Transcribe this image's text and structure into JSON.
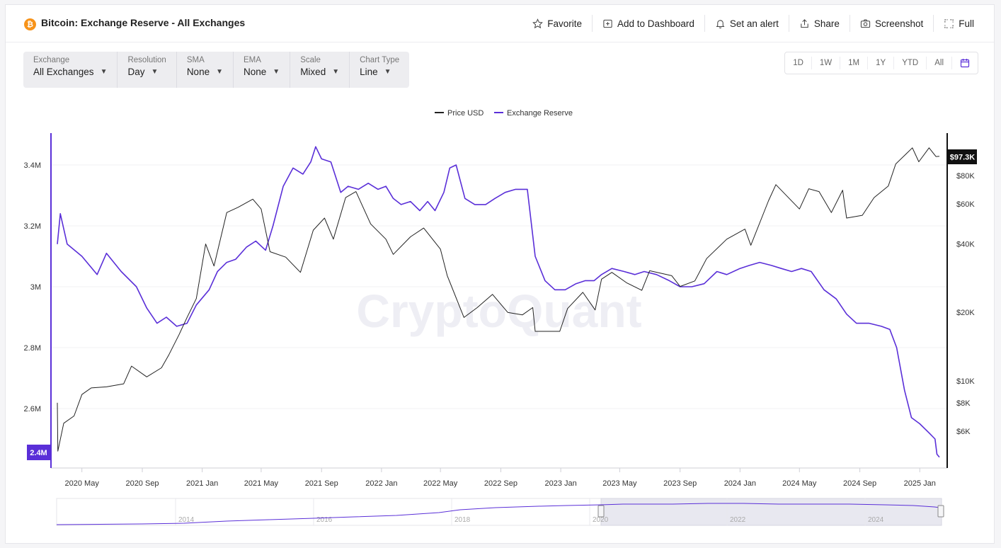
{
  "header": {
    "title": "Bitcoin: Exchange Reserve - All Exchanges",
    "actions": [
      "Favorite",
      "Add to Dashboard",
      "Set an alert",
      "Share",
      "Screenshot",
      "Full"
    ]
  },
  "controls": [
    {
      "label": "Exchange",
      "value": "All Exchanges"
    },
    {
      "label": "Resolution",
      "value": "Day"
    },
    {
      "label": "SMA",
      "value": "None"
    },
    {
      "label": "EMA",
      "value": "None"
    },
    {
      "label": "Scale",
      "value": "Mixed"
    },
    {
      "label": "Chart Type",
      "value": "Line"
    }
  ],
  "ranges": [
    "1D",
    "1W",
    "1M",
    "1Y",
    "YTD",
    "All"
  ],
  "colors": {
    "price": "#222222",
    "reserve": "#5a2fd8",
    "accent": "#5a2fd8"
  },
  "watermark": "CryptoQuant",
  "chart_data": {
    "type": "line",
    "legend": [
      "Price USD",
      "Exchange Reserve"
    ],
    "legend_position": "top-center",
    "x_ticks": [
      "2020 May",
      "2020 Sep",
      "2021 Jan",
      "2021 May",
      "2021 Sep",
      "2022 Jan",
      "2022 May",
      "2022 Sep",
      "2023 Jan",
      "2023 May",
      "2023 Sep",
      "2024 Jan",
      "2024 May",
      "2024 Sep",
      "2025 Jan"
    ],
    "x_range": [
      "2020-03-12",
      "2025-02-10"
    ],
    "left_axis": {
      "ticks": [
        "3.4M",
        "3.2M",
        "3M",
        "2.8M",
        "2.6M"
      ],
      "range": [
        2380000,
        3480000
      ],
      "current": "2.4M",
      "scale": "linear"
    },
    "right_axis": {
      "ticks": [
        "$80K",
        "$60K",
        "$40K",
        "$20K",
        "$10K",
        "$8K",
        "$6K"
      ],
      "range": [
        4200,
        125000
      ],
      "current": "$97.3K",
      "scale": "log"
    },
    "series": [
      {
        "name": "Exchange Reserve",
        "axis": "left",
        "points": [
          [
            "2020-03-12",
            3140000
          ],
          [
            "2020-03-18",
            3240000
          ],
          [
            "2020-04-01",
            3140000
          ],
          [
            "2020-05-01",
            3100000
          ],
          [
            "2020-06-01",
            3040000
          ],
          [
            "2020-06-20",
            3110000
          ],
          [
            "2020-07-20",
            3050000
          ],
          [
            "2020-08-20",
            3000000
          ],
          [
            "2020-09-10",
            2930000
          ],
          [
            "2020-10-01",
            2880000
          ],
          [
            "2020-10-20",
            2900000
          ],
          [
            "2020-11-10",
            2870000
          ],
          [
            "2020-12-01",
            2880000
          ],
          [
            "2020-12-20",
            2940000
          ],
          [
            "2021-01-15",
            2990000
          ],
          [
            "2021-02-01",
            3050000
          ],
          [
            "2021-02-20",
            3080000
          ],
          [
            "2021-03-10",
            3090000
          ],
          [
            "2021-04-01",
            3130000
          ],
          [
            "2021-04-20",
            3150000
          ],
          [
            "2021-05-10",
            3120000
          ],
          [
            "2021-05-25",
            3200000
          ],
          [
            "2021-06-15",
            3330000
          ],
          [
            "2021-07-05",
            3390000
          ],
          [
            "2021-07-25",
            3370000
          ],
          [
            "2021-08-10",
            3410000
          ],
          [
            "2021-08-20",
            3460000
          ],
          [
            "2021-09-01",
            3420000
          ],
          [
            "2021-09-20",
            3410000
          ],
          [
            "2021-10-10",
            3310000
          ],
          [
            "2021-10-25",
            3330000
          ],
          [
            "2021-11-15",
            3320000
          ],
          [
            "2021-12-05",
            3340000
          ],
          [
            "2021-12-25",
            3320000
          ],
          [
            "2022-01-10",
            3330000
          ],
          [
            "2022-01-25",
            3290000
          ],
          [
            "2022-02-10",
            3270000
          ],
          [
            "2022-03-01",
            3280000
          ],
          [
            "2022-03-20",
            3250000
          ],
          [
            "2022-04-05",
            3280000
          ],
          [
            "2022-04-20",
            3250000
          ],
          [
            "2022-05-08",
            3310000
          ],
          [
            "2022-05-20",
            3390000
          ],
          [
            "2022-06-02",
            3400000
          ],
          [
            "2022-06-20",
            3290000
          ],
          [
            "2022-07-10",
            3270000
          ],
          [
            "2022-08-01",
            3270000
          ],
          [
            "2022-08-20",
            3290000
          ],
          [
            "2022-09-10",
            3310000
          ],
          [
            "2022-10-01",
            3320000
          ],
          [
            "2022-10-25",
            3320000
          ],
          [
            "2022-11-10",
            3100000
          ],
          [
            "2022-11-30",
            3020000
          ],
          [
            "2022-12-20",
            2990000
          ],
          [
            "2023-01-10",
            2990000
          ],
          [
            "2023-02-01",
            3010000
          ],
          [
            "2023-02-20",
            3020000
          ],
          [
            "2023-03-10",
            3020000
          ],
          [
            "2023-03-25",
            3040000
          ],
          [
            "2023-04-15",
            3060000
          ],
          [
            "2023-05-10",
            3050000
          ],
          [
            "2023-06-01",
            3040000
          ],
          [
            "2023-06-20",
            3050000
          ],
          [
            "2023-07-15",
            3040000
          ],
          [
            "2023-08-10",
            3020000
          ],
          [
            "2023-09-01",
            3000000
          ],
          [
            "2023-09-25",
            3000000
          ],
          [
            "2023-10-20",
            3010000
          ],
          [
            "2023-11-15",
            3050000
          ],
          [
            "2023-12-05",
            3040000
          ],
          [
            "2024-01-01",
            3060000
          ],
          [
            "2024-01-20",
            3070000
          ],
          [
            "2024-02-10",
            3080000
          ],
          [
            "2024-03-05",
            3070000
          ],
          [
            "2024-03-25",
            3060000
          ],
          [
            "2024-04-15",
            3050000
          ],
          [
            "2024-05-05",
            3060000
          ],
          [
            "2024-05-25",
            3050000
          ],
          [
            "2024-06-20",
            2990000
          ],
          [
            "2024-07-15",
            2960000
          ],
          [
            "2024-08-05",
            2910000
          ],
          [
            "2024-08-25",
            2880000
          ],
          [
            "2024-09-20",
            2880000
          ],
          [
            "2024-10-15",
            2870000
          ],
          [
            "2024-11-01",
            2860000
          ],
          [
            "2024-11-15",
            2800000
          ],
          [
            "2024-12-01",
            2660000
          ],
          [
            "2024-12-15",
            2570000
          ],
          [
            "2025-01-01",
            2550000
          ],
          [
            "2025-01-20",
            2520000
          ],
          [
            "2025-02-01",
            2500000
          ],
          [
            "2025-02-05",
            2450000
          ],
          [
            "2025-02-10",
            2440000
          ]
        ]
      },
      {
        "name": "Price USD",
        "axis": "right",
        "points": [
          [
            "2020-03-12",
            8000
          ],
          [
            "2020-03-13",
            4900
          ],
          [
            "2020-03-25",
            6500
          ],
          [
            "2020-04-15",
            7000
          ],
          [
            "2020-05-01",
            8700
          ],
          [
            "2020-05-20",
            9300
          ],
          [
            "2020-06-20",
            9400
          ],
          [
            "2020-07-25",
            9700
          ],
          [
            "2020-08-10",
            11600
          ],
          [
            "2020-09-10",
            10400
          ],
          [
            "2020-10-10",
            11400
          ],
          [
            "2020-10-25",
            13000
          ],
          [
            "2020-11-15",
            16000
          ],
          [
            "2020-12-01",
            19000
          ],
          [
            "2020-12-20",
            23000
          ],
          [
            "2021-01-08",
            40000
          ],
          [
            "2021-01-25",
            32000
          ],
          [
            "2021-02-20",
            55000
          ],
          [
            "2021-03-15",
            58000
          ],
          [
            "2021-04-14",
            63000
          ],
          [
            "2021-05-01",
            57000
          ],
          [
            "2021-05-19",
            37000
          ],
          [
            "2021-06-20",
            35000
          ],
          [
            "2021-07-20",
            30000
          ],
          [
            "2021-08-15",
            46000
          ],
          [
            "2021-09-07",
            52000
          ],
          [
            "2021-09-25",
            42000
          ],
          [
            "2021-10-20",
            64000
          ],
          [
            "2021-11-10",
            68000
          ],
          [
            "2021-12-10",
            49000
          ],
          [
            "2022-01-10",
            42000
          ],
          [
            "2022-01-25",
            36000
          ],
          [
            "2022-03-01",
            43000
          ],
          [
            "2022-03-28",
            47000
          ],
          [
            "2022-05-01",
            38000
          ],
          [
            "2022-05-15",
            29000
          ],
          [
            "2022-06-18",
            19000
          ],
          [
            "2022-07-15",
            21000
          ],
          [
            "2022-08-15",
            24000
          ],
          [
            "2022-09-15",
            20000
          ],
          [
            "2022-10-15",
            19500
          ],
          [
            "2022-11-05",
            21000
          ],
          [
            "2022-11-10",
            16500
          ],
          [
            "2022-12-30",
            16500
          ],
          [
            "2023-01-15",
            20800
          ],
          [
            "2023-02-15",
            24500
          ],
          [
            "2023-03-12",
            20500
          ],
          [
            "2023-03-25",
            28000
          ],
          [
            "2023-04-15",
            30000
          ],
          [
            "2023-05-15",
            27000
          ],
          [
            "2023-06-15",
            25000
          ],
          [
            "2023-07-01",
            30500
          ],
          [
            "2023-08-15",
            29000
          ],
          [
            "2023-09-01",
            26000
          ],
          [
            "2023-10-01",
            27500
          ],
          [
            "2023-10-25",
            34500
          ],
          [
            "2023-12-05",
            42000
          ],
          [
            "2024-01-11",
            46500
          ],
          [
            "2024-01-23",
            39500
          ],
          [
            "2024-02-28",
            62000
          ],
          [
            "2024-03-14",
            73000
          ],
          [
            "2024-05-01",
            57000
          ],
          [
            "2024-05-20",
            70000
          ],
          [
            "2024-06-10",
            68000
          ],
          [
            "2024-07-05",
            55000
          ],
          [
            "2024-07-28",
            69000
          ],
          [
            "2024-08-05",
            52000
          ],
          [
            "2024-09-06",
            53500
          ],
          [
            "2024-09-30",
            64000
          ],
          [
            "2024-10-29",
            72000
          ],
          [
            "2024-11-13",
            90000
          ],
          [
            "2024-12-05",
            100000
          ],
          [
            "2024-12-17",
            106000
          ],
          [
            "2024-12-30",
            92000
          ],
          [
            "2025-01-20",
            106000
          ],
          [
            "2025-02-03",
            97000
          ],
          [
            "2025-02-10",
            97300
          ]
        ]
      }
    ]
  },
  "navigator": {
    "ticks": [
      "2014",
      "2016",
      "2018",
      "2020",
      "2022",
      "2024"
    ]
  }
}
